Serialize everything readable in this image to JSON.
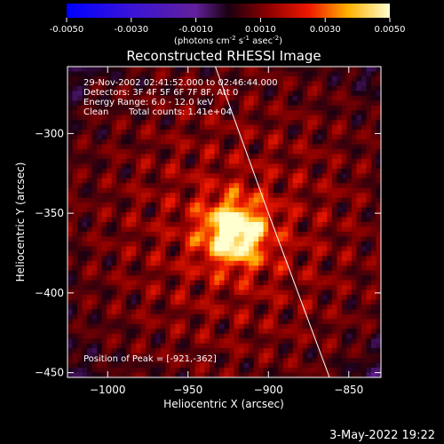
{
  "colorbar": {
    "min": -0.005,
    "max": 0.005,
    "tick_labels": [
      "-0.0050",
      "-0.0030",
      "-0.0010",
      "0.0010",
      "0.0030",
      "0.0050"
    ],
    "tick_values": [
      -0.005,
      -0.003,
      -0.001,
      0.001,
      0.003,
      0.005
    ],
    "unit_main": "(photons cm",
    "unit_sup1": "-2",
    "unit_mid": " s",
    "unit_sup2": "-1",
    "unit_tail": " asec",
    "unit_sup3": "-2",
    "unit_close": ")"
  },
  "chart_data": {
    "type": "heatmap",
    "title": "Reconstructed RHESSI Image",
    "xlabel": "Heliocentric X (arcsec)",
    "ylabel": "Heliocentric Y (arcsec)",
    "xlim": [
      -1025,
      -830
    ],
    "ylim": [
      -453,
      -258
    ],
    "x_ticks": [
      -1000,
      -950,
      -900,
      -850
    ],
    "x_tick_labels": [
      "−1000",
      "−950",
      "−900",
      "−850"
    ],
    "y_ticks": [
      -300,
      -350,
      -400,
      -450
    ],
    "y_tick_labels": [
      "−300",
      "−350",
      "−400",
      "−450"
    ],
    "peak": {
      "x": -921,
      "y": -362,
      "value": 0.005
    },
    "annotations": {
      "time_range": "29-Nov-2002 02:41:52.000 to 02:46:44.000",
      "detectors": "Detectors: 3F 4F 5F 6F 7F 8F, Att 0",
      "energy": "Energy Range: 6.0 - 12.0 keV",
      "clean": "Clean",
      "total_counts": "Total counts: 1.41e+04",
      "peak_position": "Position of Peak = [-921,-362]"
    },
    "limb_curve": [
      [
        -933,
        -258
      ],
      [
        -900,
        -350
      ],
      [
        -862,
        -453
      ]
    ]
  },
  "footer": {
    "date": "3-May-2022 19:22"
  }
}
